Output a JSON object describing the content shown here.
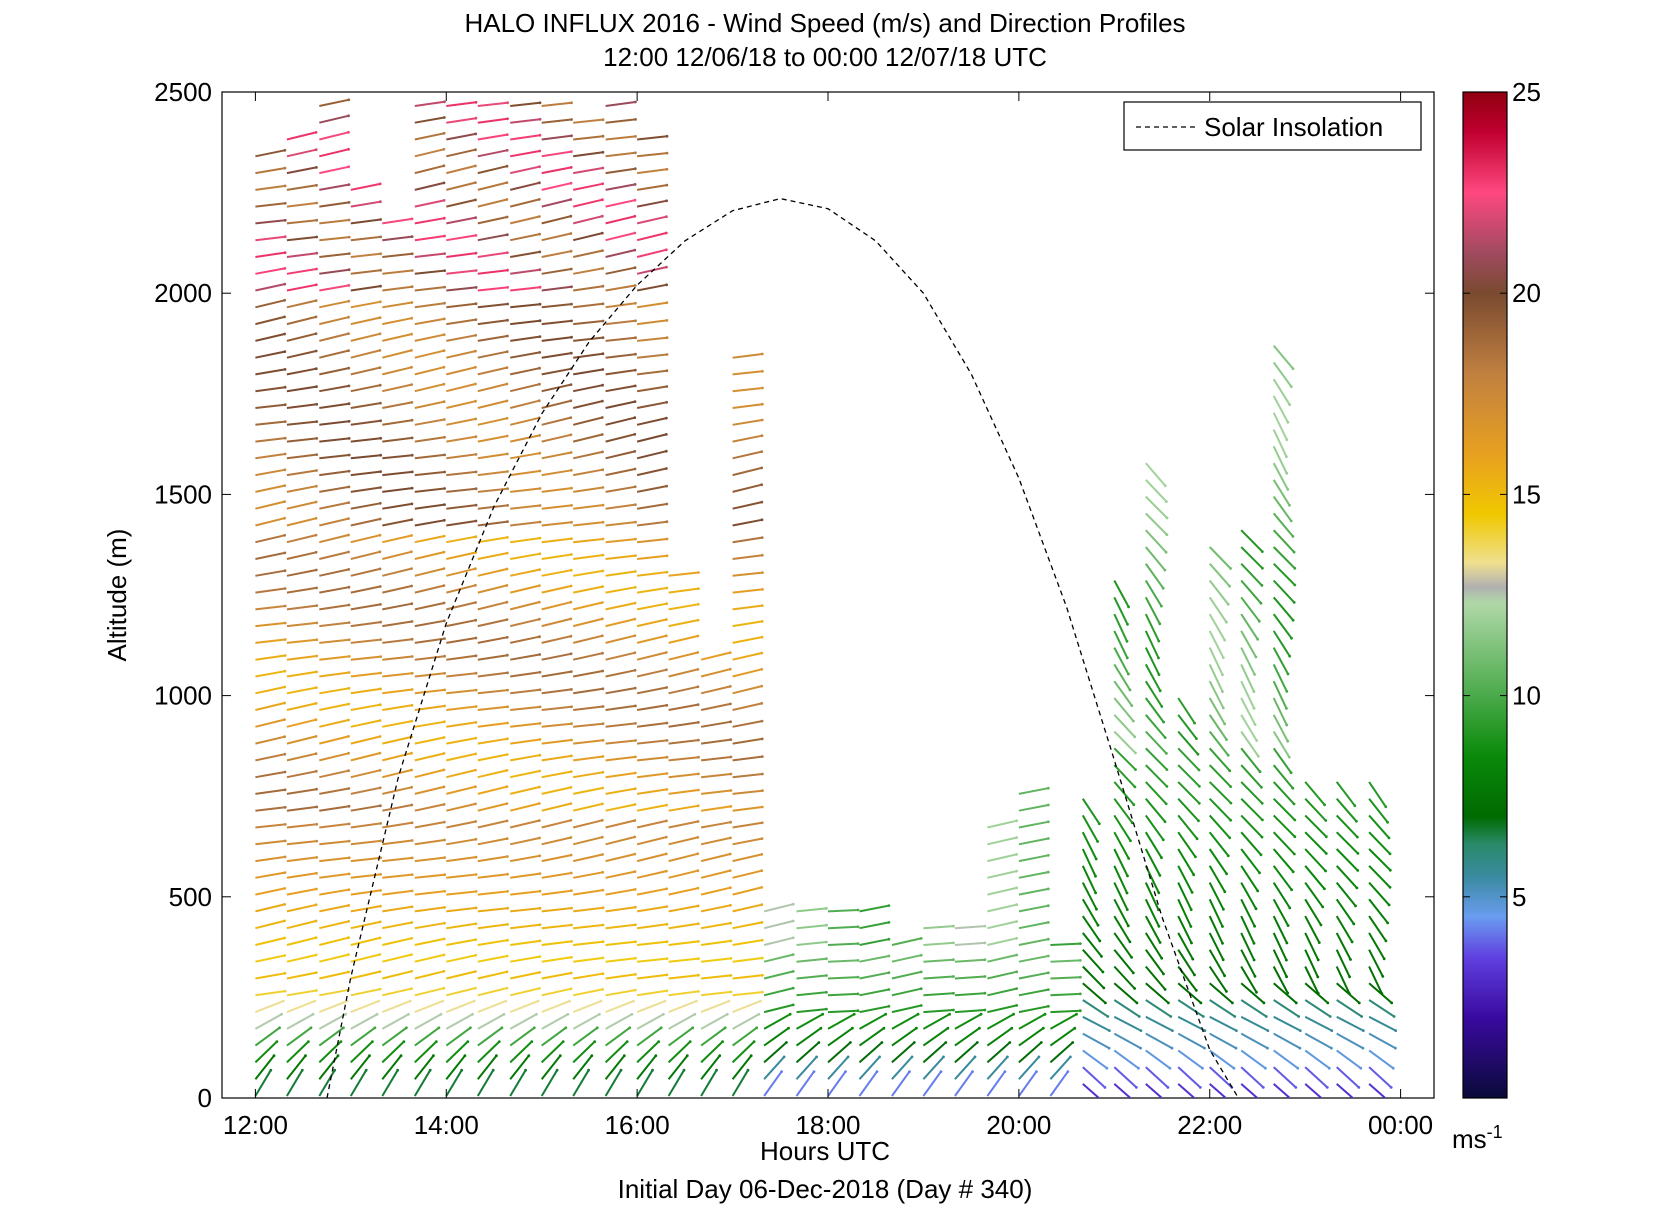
{
  "chart_data": {
    "type": "wind-barb-profile",
    "title": "HALO INFLUX 2016 - Wind Speed (m/s) and Direction Profiles",
    "subtitle": "12:00 12/06/18 to 00:00 12/07/18  UTC",
    "xlabel": "Hours UTC",
    "footer": "Initial Day 06-Dec-2018 (Day # 340)",
    "ylabel": "Altitude (m)",
    "x_range": [
      11.65,
      24.35
    ],
    "y_range": [
      0,
      2500
    ],
    "x_ticks": [
      12,
      14,
      16,
      18,
      20,
      22,
      24
    ],
    "x_tick_labels": [
      "12:00",
      "14:00",
      "16:00",
      "18:00",
      "20:00",
      "22:00",
      "00:00"
    ],
    "y_ticks": [
      0,
      500,
      1000,
      1500,
      2000,
      2500
    ],
    "y_tick_labels": [
      "0",
      "500",
      "1000",
      "1500",
      "2000",
      "2500"
    ],
    "legend": {
      "label": "Solar Insolation",
      "placement": "top-right"
    },
    "colorbar": {
      "range": [
        0,
        25
      ],
      "ticks": [
        5,
        10,
        15,
        20,
        25
      ],
      "tick_labels": [
        "5",
        "10",
        "15",
        "20",
        "25"
      ],
      "unit": "ms",
      "unit_exponent": "-1",
      "stops": [
        {
          "v": 0,
          "c": "#0a0a3a"
        },
        {
          "v": 2,
          "c": "#3a0aa0"
        },
        {
          "v": 3.5,
          "c": "#6040e0"
        },
        {
          "v": 4.5,
          "c": "#6a9cf0"
        },
        {
          "v": 5.5,
          "c": "#3a8aa0"
        },
        {
          "v": 6.3,
          "c": "#2a8a6a"
        },
        {
          "v": 7,
          "c": "#006a00"
        },
        {
          "v": 8.5,
          "c": "#0a8a0a"
        },
        {
          "v": 10,
          "c": "#4aaa4a"
        },
        {
          "v": 12.3,
          "c": "#b0d8a8"
        },
        {
          "v": 12.7,
          "c": "#b0b0b0"
        },
        {
          "v": 13.3,
          "c": "#f0e090"
        },
        {
          "v": 14.5,
          "c": "#f0c800"
        },
        {
          "v": 16,
          "c": "#e8a020"
        },
        {
          "v": 18,
          "c": "#c08040"
        },
        {
          "v": 20,
          "c": "#7a4a30"
        },
        {
          "v": 21,
          "c": "#a04a60"
        },
        {
          "v": 22.5,
          "c": "#ff4880"
        },
        {
          "v": 24,
          "c": "#c00030"
        },
        {
          "v": 25,
          "c": "#900010"
        }
      ]
    },
    "solar_insolation": {
      "x": [
        12.75,
        13.0,
        13.5,
        14.0,
        14.5,
        15.0,
        15.5,
        16.0,
        16.5,
        17.0,
        17.5,
        18.0,
        18.5,
        19.0,
        19.5,
        20.0,
        20.5,
        21.0,
        21.5,
        22.0,
        22.3
      ],
      "y": [
        0,
        300,
        800,
        1180,
        1470,
        1700,
        1880,
        2020,
        2130,
        2205,
        2235,
        2210,
        2130,
        2000,
        1800,
        1540,
        1220,
        840,
        450,
        120,
        0
      ]
    },
    "profiles": [
      {
        "time": 12.0,
        "top": 2370,
        "min_alt": 0
      },
      {
        "time": 12.33,
        "top": 2400,
        "min_alt": 0
      },
      {
        "time": 12.67,
        "top": 2500,
        "min_alt": 0
      },
      {
        "time": 13.0,
        "top": 2290,
        "min_alt": 0
      },
      {
        "time": 13.33,
        "top": 2180,
        "min_alt": 0
      },
      {
        "time": 13.67,
        "top": 2500,
        "min_alt": 0
      },
      {
        "time": 14.0,
        "top": 2500,
        "min_alt": 0
      },
      {
        "time": 14.33,
        "top": 2500,
        "min_alt": 0
      },
      {
        "time": 14.67,
        "top": 2500,
        "min_alt": 0
      },
      {
        "time": 15.0,
        "top": 2480,
        "min_alt": 0
      },
      {
        "time": 15.33,
        "top": 2450,
        "min_alt": 0
      },
      {
        "time": 15.67,
        "top": 2490,
        "min_alt": 0
      },
      {
        "time": 16.0,
        "top": 2400,
        "min_alt": 0
      },
      {
        "time": 16.33,
        "top": 1320,
        "min_alt": 0
      },
      {
        "time": 16.67,
        "top": 1100,
        "min_alt": 0
      },
      {
        "time": 17.0,
        "top": 1870,
        "min_alt": 0
      },
      {
        "time": 17.33,
        "top": 490,
        "min_alt": 0
      },
      {
        "time": 17.67,
        "top": 490,
        "min_alt": 0
      },
      {
        "time": 18.0,
        "top": 490,
        "min_alt": 0
      },
      {
        "time": 18.33,
        "top": 490,
        "min_alt": 0
      },
      {
        "time": 18.67,
        "top": 420,
        "min_alt": 0
      },
      {
        "time": 19.0,
        "top": 460,
        "min_alt": 0
      },
      {
        "time": 19.33,
        "top": 460,
        "min_alt": 0
      },
      {
        "time": 19.67,
        "top": 700,
        "min_alt": 0
      },
      {
        "time": 20.0,
        "top": 770,
        "min_alt": 0
      },
      {
        "time": 20.33,
        "top": 400,
        "min_alt": 0
      },
      {
        "time": 20.67,
        "top": 760,
        "min_alt": 30
      },
      {
        "time": 21.0,
        "top": 1290,
        "min_alt": 30
      },
      {
        "time": 21.33,
        "top": 1580,
        "min_alt": 30
      },
      {
        "time": 21.67,
        "top": 1000,
        "min_alt": 30
      },
      {
        "time": 22.0,
        "top": 1380,
        "min_alt": 30
      },
      {
        "time": 22.33,
        "top": 1440,
        "min_alt": 30
      },
      {
        "time": 22.67,
        "top": 1880,
        "min_alt": 30
      },
      {
        "time": 23.0,
        "top": 820,
        "min_alt": 30
      },
      {
        "time": 23.33,
        "top": 820,
        "min_alt": 30
      },
      {
        "time": 23.67,
        "top": 800,
        "min_alt": 30
      }
    ]
  }
}
